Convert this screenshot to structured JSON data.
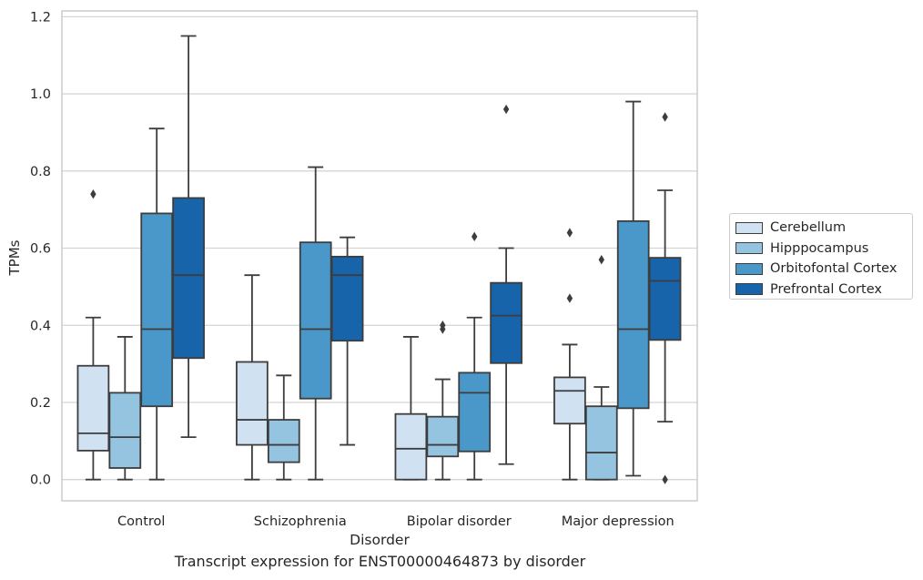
{
  "chart_data": {
    "type": "box",
    "caption": "Transcript expression for ENST00000464873 by disorder",
    "xlabel": "Disorder",
    "ylabel": "TPMs",
    "ylim": [
      -0.055,
      1.215
    ],
    "yticks": [
      "0.0",
      "0.2",
      "0.4",
      "0.6",
      "0.8",
      "1.0",
      "1.2"
    ],
    "ytick_values": [
      0.0,
      0.2,
      0.4,
      0.6,
      0.8,
      1.0,
      1.2
    ],
    "grid": "horizontal",
    "legend_position": "outside-right",
    "categories": [
      "Control",
      "Schizophrenia",
      "Bipolar disorder",
      "Major depression"
    ],
    "series": [
      {
        "name": "Cerebellum",
        "color": "#d0e1f2",
        "boxes": [
          {
            "whislo": 0.0,
            "q1": 0.075,
            "med": 0.12,
            "q3": 0.295,
            "whishi": 0.42,
            "fliers": [
              0.74
            ]
          },
          {
            "whislo": 0.0,
            "q1": 0.09,
            "med": 0.155,
            "q3": 0.305,
            "whishi": 0.53,
            "fliers": []
          },
          {
            "whislo": 0.0,
            "q1": 0.0,
            "med": 0.08,
            "q3": 0.17,
            "whishi": 0.37,
            "fliers": []
          },
          {
            "whislo": 0.0,
            "q1": 0.145,
            "med": 0.23,
            "q3": 0.265,
            "whishi": 0.35,
            "fliers": [
              0.47,
              0.64
            ]
          }
        ]
      },
      {
        "name": "Hipppocampus",
        "color": "#94c4df",
        "boxes": [
          {
            "whislo": 0.0,
            "q1": 0.03,
            "med": 0.11,
            "q3": 0.225,
            "whishi": 0.37,
            "fliers": []
          },
          {
            "whislo": 0.0,
            "q1": 0.045,
            "med": 0.09,
            "q3": 0.155,
            "whishi": 0.27,
            "fliers": []
          },
          {
            "whislo": 0.0,
            "q1": 0.06,
            "med": 0.09,
            "q3": 0.163,
            "whishi": 0.26,
            "fliers": [
              0.39,
              0.4
            ]
          },
          {
            "whislo": 0.0,
            "q1": 0.0,
            "med": 0.07,
            "q3": 0.19,
            "whishi": 0.24,
            "fliers": [
              0.57
            ]
          }
        ]
      },
      {
        "name": "Orbitofontal Cortex",
        "color": "#4a98c9",
        "boxes": [
          {
            "whislo": 0.0,
            "q1": 0.19,
            "med": 0.39,
            "q3": 0.69,
            "whishi": 0.91,
            "fliers": []
          },
          {
            "whislo": 0.0,
            "q1": 0.21,
            "med": 0.39,
            "q3": 0.615,
            "whishi": 0.81,
            "fliers": []
          },
          {
            "whislo": 0.0,
            "q1": 0.073,
            "med": 0.225,
            "q3": 0.277,
            "whishi": 0.42,
            "fliers": [
              0.63
            ]
          },
          {
            "whislo": 0.01,
            "q1": 0.185,
            "med": 0.39,
            "q3": 0.67,
            "whishi": 0.98,
            "fliers": []
          }
        ]
      },
      {
        "name": "Prefrontal Cortex",
        "color": "#1764ab",
        "boxes": [
          {
            "whislo": 0.11,
            "q1": 0.315,
            "med": 0.53,
            "q3": 0.73,
            "whishi": 1.15,
            "fliers": []
          },
          {
            "whislo": 0.09,
            "q1": 0.36,
            "med": 0.53,
            "q3": 0.578,
            "whishi": 0.628,
            "fliers": []
          },
          {
            "whislo": 0.04,
            "q1": 0.302,
            "med": 0.425,
            "q3": 0.51,
            "whishi": 0.6,
            "fliers": [
              0.96
            ]
          },
          {
            "whislo": 0.15,
            "q1": 0.362,
            "med": 0.515,
            "q3": 0.575,
            "whishi": 0.75,
            "fliers": [
              0.0,
              0.94
            ]
          }
        ]
      }
    ]
  }
}
